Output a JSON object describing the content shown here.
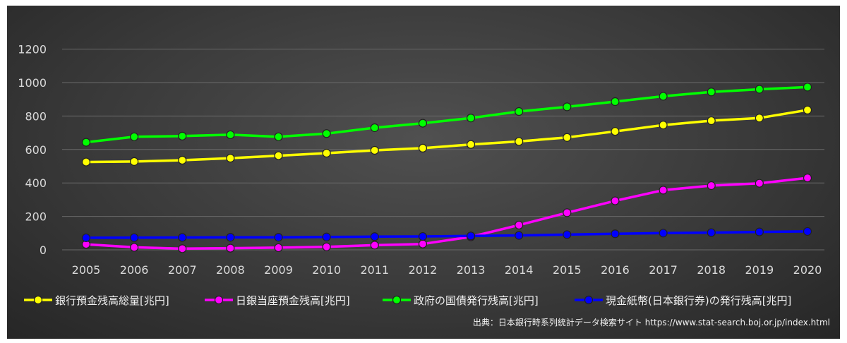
{
  "chart_data": {
    "type": "line",
    "title": "",
    "xlabel": "",
    "ylabel": "",
    "ylim": [
      0,
      1300
    ],
    "yticks": [
      0,
      200,
      400,
      600,
      800,
      1000,
      1200
    ],
    "categories": [
      "2005",
      "2006",
      "2007",
      "2008",
      "2009",
      "2010",
      "2011",
      "2012",
      "2013",
      "2014",
      "2015",
      "2016",
      "2017",
      "2018",
      "2019",
      "2020"
    ],
    "grid": true,
    "legend_position": "bottom",
    "series": [
      {
        "name": "銀行預金残高総量[兆円]",
        "color": "#ffff00",
        "values": [
          525,
          528,
          536,
          548,
          563,
          578,
          595,
          608,
          630,
          648,
          672,
          708,
          746,
          772,
          788,
          836
        ]
      },
      {
        "name": "日銀当座預金残高[兆円]",
        "color": "#ff00ff",
        "values": [
          33,
          15,
          7,
          10,
          13,
          18,
          28,
          35,
          78,
          148,
          222,
          293,
          357,
          384,
          398,
          430
        ]
      },
      {
        "name": "政府の国債発行残高[兆円]",
        "color": "#00ff00",
        "values": [
          643,
          676,
          680,
          688,
          676,
          695,
          730,
          757,
          788,
          827,
          855,
          886,
          918,
          944,
          960,
          973
        ]
      },
      {
        "name": "現金紙幣(日本銀行券)の発行残高[兆円]",
        "color": "#0000ff",
        "values": [
          72,
          73,
          74,
          75,
          75,
          77,
          79,
          80,
          83,
          86,
          91,
          96,
          100,
          103,
          107,
          110
        ]
      }
    ]
  },
  "source_note": "出典：日本銀行時系列統計データ検索サイト https://www.stat-search.boj.or.jp/index.html"
}
